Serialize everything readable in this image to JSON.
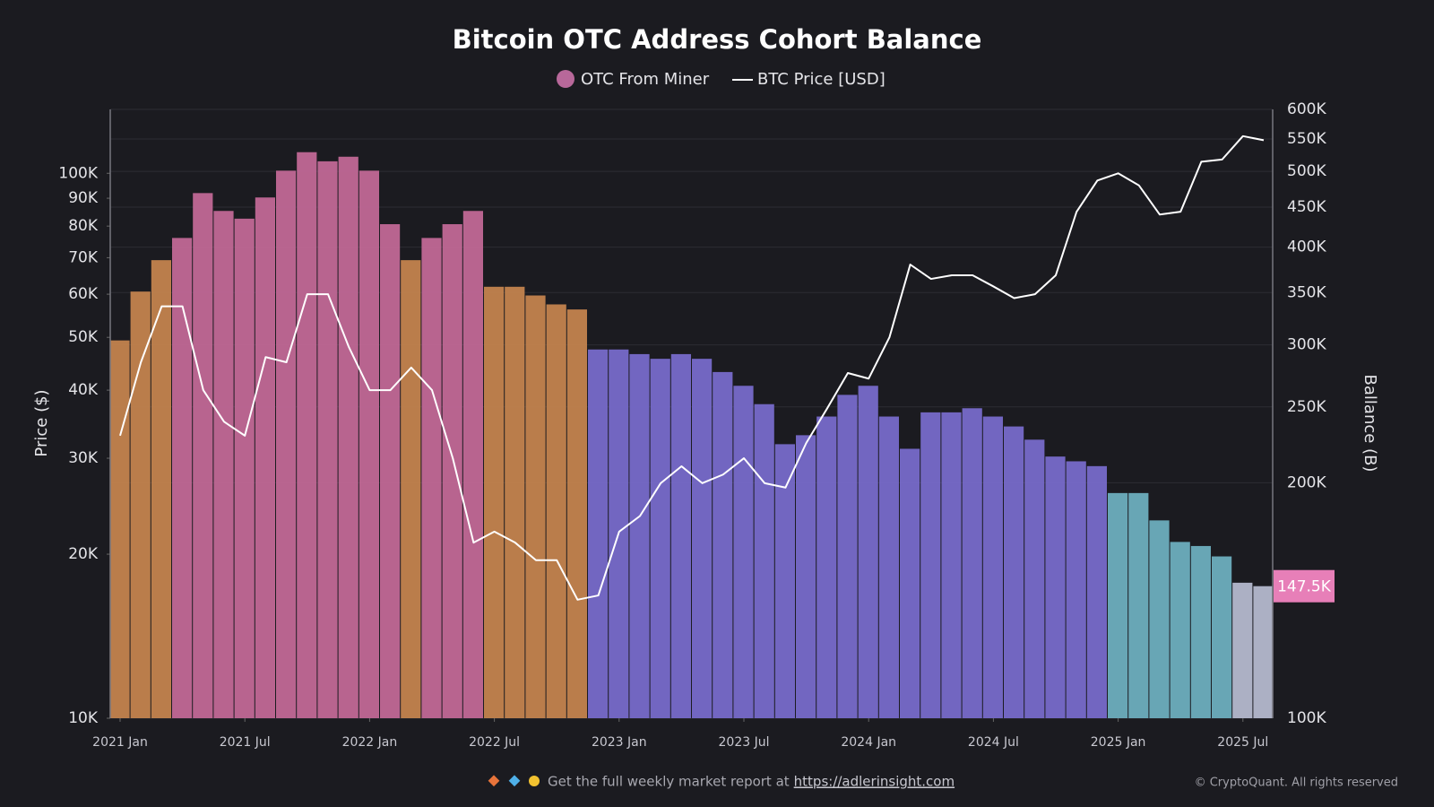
{
  "chart_data": {
    "type": "bar-line",
    "title": "Bitcoin OTC Address Cohort Balance",
    "y_label": "Price ($)",
    "y2_label": "Ballance (B)",
    "x": [
      "2021-01",
      "2021-02",
      "2021-03",
      "2021-04",
      "2021-05",
      "2021-06",
      "2021-07",
      "2021-08",
      "2021-09",
      "2021-10",
      "2021-11",
      "2021-12",
      "2022-01",
      "2022-02",
      "2022-03",
      "2022-04",
      "2022-05",
      "2022-06",
      "2022-07",
      "2022-08",
      "2022-09",
      "2022-10",
      "2022-11",
      "2022-12",
      "2023-01",
      "2023-02",
      "2023-03",
      "2023-04",
      "2023-05",
      "2023-06",
      "2023-07",
      "2023-08",
      "2023-09",
      "2023-10",
      "2023-11",
      "2023-12",
      "2024-01",
      "2024-02",
      "2024-03",
      "2024-04",
      "2024-05",
      "2024-06",
      "2024-07",
      "2024-08",
      "2024-09",
      "2024-10",
      "2024-11",
      "2024-12",
      "2025-01",
      "2025-02",
      "2025-03",
      "2025-04",
      "2025-05",
      "2025-06",
      "2025-07",
      "2025-08"
    ],
    "xlim": [
      "2021-01",
      "2025-08"
    ],
    "xticks": [
      {
        "value": "2021-01",
        "label": "2021 Jan"
      },
      {
        "value": "2021-07",
        "label": "2021 Jul"
      },
      {
        "value": "2022-01",
        "label": "2022 Jan"
      },
      {
        "value": "2022-07",
        "label": "2022 Jul"
      },
      {
        "value": "2023-01",
        "label": "2023 Jan"
      },
      {
        "value": "2023-07",
        "label": "2023 Jul"
      },
      {
        "value": "2024-01",
        "label": "2024 Jan"
      },
      {
        "value": "2024-07",
        "label": "2024 Jul"
      },
      {
        "value": "2025-01",
        "label": "2025 Jan"
      },
      {
        "value": "2025-07",
        "label": "2025 Jul"
      }
    ],
    "log_y": true,
    "ylim": [
      10000,
      131000
    ],
    "yticks": [
      {
        "value": 10000,
        "label": "10K"
      },
      {
        "value": 20000,
        "label": "20K"
      },
      {
        "value": 30000,
        "label": "30K"
      },
      {
        "value": 40000,
        "label": "40K"
      },
      {
        "value": 50000,
        "label": "50K"
      },
      {
        "value": 60000,
        "label": "60K"
      },
      {
        "value": 70000,
        "label": "70K"
      },
      {
        "value": 80000,
        "label": "80K"
      },
      {
        "value": 90000,
        "label": "90K"
      },
      {
        "value": 100000,
        "label": "100K"
      }
    ],
    "log_y2": true,
    "y2lim": [
      100000,
      600000
    ],
    "y2ticks": [
      {
        "value": 100000,
        "label": "100K"
      },
      {
        "value": 200000,
        "label": "200K"
      },
      {
        "value": 250000,
        "label": "250K"
      },
      {
        "value": 300000,
        "label": "300K"
      },
      {
        "value": 350000,
        "label": "350K"
      },
      {
        "value": 400000,
        "label": "400K"
      },
      {
        "value": 450000,
        "label": "450K"
      },
      {
        "value": 500000,
        "label": "500K"
      },
      {
        "value": 550000,
        "label": "550K"
      },
      {
        "value": 600000,
        "label": "600K"
      }
    ],
    "grid": true,
    "series": [
      {
        "name": "OTC From Miner",
        "type": "bar",
        "axis": "y2",
        "color": "#b8689a",
        "colors": [
          "#c8854f",
          "#c8854f",
          "#c8854f",
          "#c56a99",
          "#c56a99",
          "#c56a99",
          "#c56a99",
          "#c56a99",
          "#c56a99",
          "#c56a99",
          "#c56a99",
          "#c56a99",
          "#c56a99",
          "#c56a99",
          "#c8854f",
          "#c56a99",
          "#c56a99",
          "#c56a99",
          "#c8854f",
          "#c8854f",
          "#c8854f",
          "#c8854f",
          "#c8854f",
          "#7a6ccf",
          "#7a6ccf",
          "#7a6ccf",
          "#7a6ccf",
          "#7a6ccf",
          "#7a6ccf",
          "#7a6ccf",
          "#7a6ccf",
          "#7a6ccf",
          "#7a6ccf",
          "#7a6ccf",
          "#7a6ccf",
          "#7a6ccf",
          "#7a6ccf",
          "#7a6ccf",
          "#7a6ccf",
          "#7a6ccf",
          "#7a6ccf",
          "#7a6ccf",
          "#7a6ccf",
          "#7a6ccf",
          "#7a6ccf",
          "#7a6ccf",
          "#7a6ccf",
          "#7a6ccf",
          "#6fb2c2",
          "#6fb2c2",
          "#6fb2c2",
          "#6fb2c2",
          "#6fb2c2",
          "#6fb2c2",
          "#b9bdd2",
          "#b9bdd2"
        ],
        "values": [
          304000,
          351000,
          385000,
          411000,
          469000,
          445000,
          435000,
          463000,
          501000,
          529000,
          515000,
          522000,
          501000,
          428000,
          385000,
          411000,
          428000,
          445000,
          356000,
          356000,
          347000,
          338000,
          333000,
          296000,
          296000,
          292000,
          288000,
          292000,
          288000,
          277000,
          266000,
          252000,
          224000,
          230000,
          243000,
          259000,
          266000,
          243000,
          221000,
          246000,
          246000,
          249000,
          243000,
          236000,
          227000,
          216000,
          213000,
          210000,
          194000,
          194000,
          179000,
          168000,
          166000,
          161000,
          149000,
          147500
        ],
        "value_labels": [
          null,
          null,
          null,
          null,
          null,
          null,
          null,
          null,
          null,
          null,
          null,
          null,
          null,
          null,
          null,
          null,
          null,
          null,
          null,
          null,
          null,
          null,
          null,
          null,
          null,
          null,
          null,
          null,
          null,
          null,
          null,
          null,
          null,
          null,
          null,
          null,
          null,
          null,
          null,
          null,
          null,
          null,
          null,
          null,
          null,
          null,
          null,
          null,
          null,
          null,
          null,
          null,
          null,
          null,
          null,
          "147.5K"
        ]
      },
      {
        "name": "BTC Price [USD]",
        "type": "line",
        "axis": "y",
        "color": "#ffffff",
        "values": [
          33000,
          45000,
          57000,
          57000,
          40000,
          35000,
          33000,
          46000,
          45000,
          60000,
          60000,
          48000,
          40000,
          40000,
          44000,
          40000,
          30000,
          21000,
          22000,
          21000,
          19500,
          19500,
          16500,
          16800,
          22000,
          23500,
          27000,
          29000,
          27000,
          28000,
          30000,
          27000,
          26500,
          32000,
          37000,
          43000,
          42000,
          50000,
          68000,
          64000,
          65000,
          65000,
          62000,
          59000,
          60000,
          65000,
          85000,
          97000,
          100000,
          95000,
          84000,
          85000,
          105000,
          106000,
          117000,
          115000
        ]
      }
    ],
    "footer": {
      "text": "Get the full weekly market report at",
      "link": "https://adlerinsight.com",
      "copyright": "© CryptoQuant. All rights reserved"
    }
  }
}
